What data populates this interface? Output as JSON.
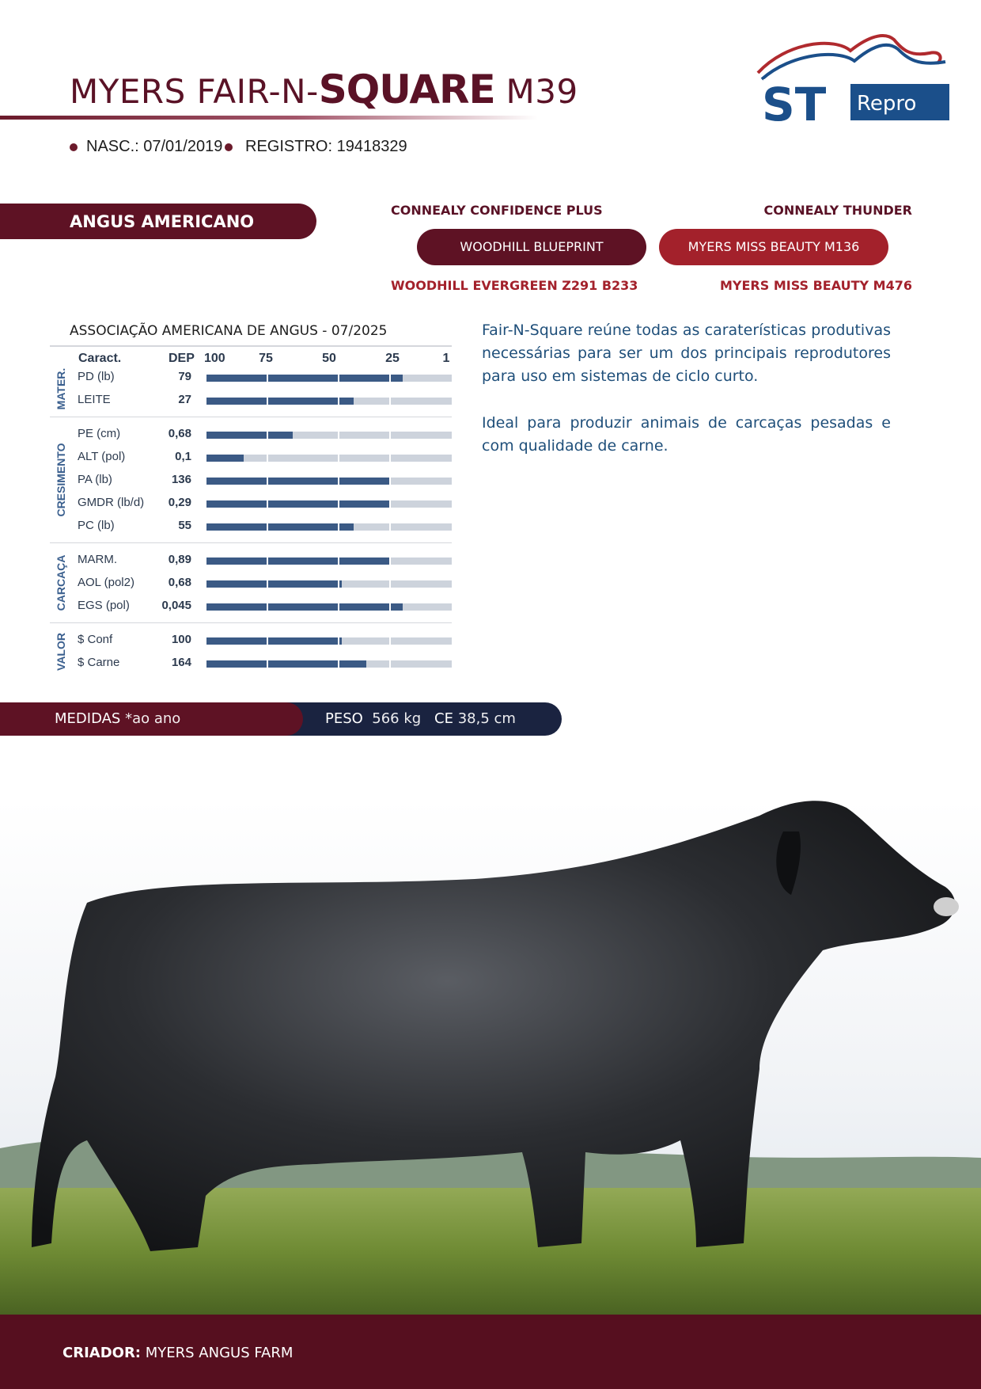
{
  "header": {
    "title_part1": "MYERS FAIR-N-",
    "title_bold": "SQUARE",
    "title_part2": " M39",
    "birth_label": "NASC.:",
    "birth_value": "07/01/2019",
    "registry_label": "REGISTRO:",
    "registry_value": "19418329"
  },
  "logo": {
    "brand": "ST",
    "sub": "Repro",
    "colors": {
      "blue": "#1b4f8a",
      "red": "#b02a2e"
    }
  },
  "breed": "ANGUS AMERICANO",
  "pedigree": {
    "sire_sire": "CONNEALY CONFIDENCE PLUS",
    "dam_sire": "CONNEALY THUNDER",
    "sire": "WOODHILL BLUEPRINT",
    "dam": "MYERS MISS BEAUTY M136",
    "sire_dam": "WOODHILL EVERGREEN Z291 B233",
    "dam_dam": "MYERS MISS BEAUTY M476"
  },
  "epd": {
    "source": "ASSOCIAÇÃO AMERICANA DE ANGUS - 07/2025",
    "col_trait": "Caract.",
    "col_dep": "DEP",
    "scale": [
      "100",
      "75",
      "50",
      "25",
      "1"
    ],
    "groups": [
      {
        "name": "MATER.",
        "rows": [
          {
            "trait": "PD (lb)",
            "dep": "79",
            "level": 0.8
          },
          {
            "trait": "LEITE",
            "dep": "27",
            "level": 0.6
          }
        ]
      },
      {
        "name": "CRESIMENTO",
        "rows": [
          {
            "trait": "PE (cm)",
            "dep": "0,68",
            "level": 0.35
          },
          {
            "trait": "ALT (pol)",
            "dep": "0,1",
            "level": 0.15
          },
          {
            "trait": "PA (lb)",
            "dep": "136",
            "level": 0.75
          },
          {
            "trait": "GMDR (lb/d)",
            "dep": "0,29",
            "level": 0.75
          },
          {
            "trait": "PC (lb)",
            "dep": "55",
            "level": 0.6
          }
        ]
      },
      {
        "name": "CARCAÇA",
        "rows": [
          {
            "trait": "MARM.",
            "dep": "0,89",
            "level": 0.75
          },
          {
            "trait": "AOL (pol2)",
            "dep": "0,68",
            "level": 0.55
          },
          {
            "trait": "EGS (pol)",
            "dep": "0,045",
            "level": 0.8
          }
        ]
      },
      {
        "name": "VALOR",
        "rows": [
          {
            "trait": "$ Conf",
            "dep": "100",
            "level": 0.55
          },
          {
            "trait": "$ Carne",
            "dep": "164",
            "level": 0.65
          }
        ]
      }
    ]
  },
  "description": {
    "p1": "Fair-N-Square reúne todas as caraterísticas produtivas necessárias para ser um dos principais reprodutores para uso em sistemas de ciclo curto.",
    "p2": "Ideal para produzir animais de carcaças pesadas e com qualidade de carne."
  },
  "measures": {
    "label": "MEDIDAS",
    "note": "*ao ano",
    "weight_label": "PESO",
    "weight_value": "566 kg",
    "ce_label": "CE",
    "ce_value": "38,5 cm"
  },
  "footer": {
    "breeder_label": "CRIADOR:",
    "breeder_value": "MYERS ANGUS FARM"
  },
  "colors": {
    "wine": "#5e1224",
    "navy": "#1a2340",
    "bar": "#3b5a85",
    "track": "#cdd3dc",
    "text_blue": "#1f4f7a"
  }
}
